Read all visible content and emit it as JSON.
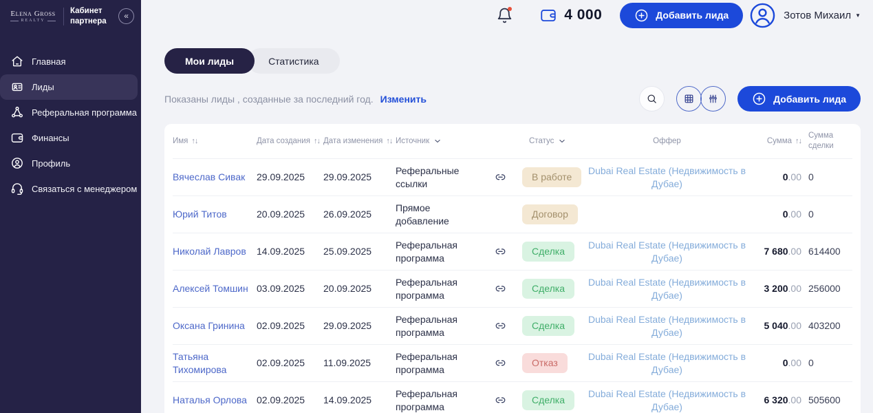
{
  "colors": {
    "primary_blue": "#1c49da",
    "sidebar_bg": "#252246",
    "badge_tan_bg": "#f4e8d3",
    "badge_tan_text": "#a3906c",
    "badge_green_bg": "#d9f3e2",
    "badge_green_text": "#3fae68",
    "badge_red_bg": "#f9dcdb",
    "badge_red_text": "#c96a66"
  },
  "sidebar": {
    "brand_line1": "Elena Gross",
    "brand_line2": "REALTY",
    "subtitle": "Кабинет партнера",
    "items": [
      {
        "label": "Главная",
        "icon": "home-icon",
        "active": false
      },
      {
        "label": "Лиды",
        "icon": "leads-icon",
        "active": true
      },
      {
        "label": "Реферальная программа",
        "icon": "referral-icon",
        "active": false
      },
      {
        "label": "Финансы",
        "icon": "wallet-icon",
        "active": false
      },
      {
        "label": "Профиль",
        "icon": "profile-icon",
        "active": false
      },
      {
        "label": "Связаться с менеджером",
        "icon": "headset-icon",
        "active": false
      }
    ]
  },
  "topbar": {
    "balance": "4 000",
    "add_lead_button": "Добавить лида",
    "user_name": "Зотов Михаил"
  },
  "tabs": [
    {
      "label": "Мои лиды",
      "active": true
    },
    {
      "label": "Статистика",
      "active": false
    }
  ],
  "filter_bar": {
    "info_text": "Показаны лиды , созданные за последний год.",
    "change_link": "Изменить",
    "add_lead_button": "Добавить лида"
  },
  "table": {
    "headers": [
      {
        "label": "Имя",
        "sort": true
      },
      {
        "label": "Дата создания",
        "sort": true
      },
      {
        "label": "Дата изменения",
        "sort": true
      },
      {
        "label": "Источник",
        "dropdown": true
      },
      {
        "label": ""
      },
      {
        "label": "Статус",
        "dropdown": true
      },
      {
        "label": "Оффер"
      },
      {
        "label": "Сумма",
        "sort": true
      },
      {
        "label": "Сумма сделки"
      }
    ],
    "rows": [
      {
        "name": "Вячеслав Сивак",
        "created": "29.09.2025",
        "modified": "29.09.2025",
        "source": "Реферальные ссылки",
        "has_link": true,
        "status": "В работе",
        "status_tone": "tan",
        "offer": "Dubai Real Estate (Недвижимость в Дубае)",
        "amount_int": "0",
        "amount_dec": ".00",
        "deal_sum": "0"
      },
      {
        "name": "Юрий Титов",
        "created": "20.09.2025",
        "modified": "26.09.2025",
        "source": "Прямое добавление",
        "has_link": false,
        "status": "Договор",
        "status_tone": "tan",
        "offer": "",
        "amount_int": "0",
        "amount_dec": ".00",
        "deal_sum": "0"
      },
      {
        "name": "Николай Лавров",
        "created": "14.09.2025",
        "modified": "25.09.2025",
        "source": "Реферальная программа",
        "has_link": true,
        "status": "Сделка",
        "status_tone": "green",
        "offer": "Dubai Real Estate (Недвижимость в Дубае)",
        "amount_int": "7 680",
        "amount_dec": ".00",
        "deal_sum": "614400"
      },
      {
        "name": "Алексей Томшин",
        "created": "03.09.2025",
        "modified": "20.09.2025",
        "source": "Реферальная программа",
        "has_link": true,
        "status": "Сделка",
        "status_tone": "green",
        "offer": "Dubai Real Estate (Недвижимость в Дубае)",
        "amount_int": "3 200",
        "amount_dec": ".00",
        "deal_sum": "256000"
      },
      {
        "name": "Оксана Гринина",
        "created": "02.09.2025",
        "modified": "29.09.2025",
        "source": "Реферальная программа",
        "has_link": true,
        "status": "Сделка",
        "status_tone": "green",
        "offer": "Dubai Real Estate (Недвижимость в Дубае)",
        "amount_int": "5 040",
        "amount_dec": ".00",
        "deal_sum": "403200"
      },
      {
        "name": "Татьяна Тихомирова",
        "created": "02.09.2025",
        "modified": "11.09.2025",
        "source": "Реферальная программа",
        "has_link": true,
        "status": "Отказ",
        "status_tone": "red",
        "offer": "Dubai Real Estate (Недвижимость в Дубае)",
        "amount_int": "0",
        "amount_dec": ".00",
        "deal_sum": "0"
      },
      {
        "name": "Наталья Орлова",
        "created": "02.09.2025",
        "modified": "14.09.2025",
        "source": "Реферальная программа",
        "has_link": true,
        "status": "Сделка",
        "status_tone": "green",
        "offer": "Dubai Real Estate (Недвижимость в Дубае)",
        "amount_int": "6 320",
        "amount_dec": ".00",
        "deal_sum": "505600"
      }
    ]
  }
}
